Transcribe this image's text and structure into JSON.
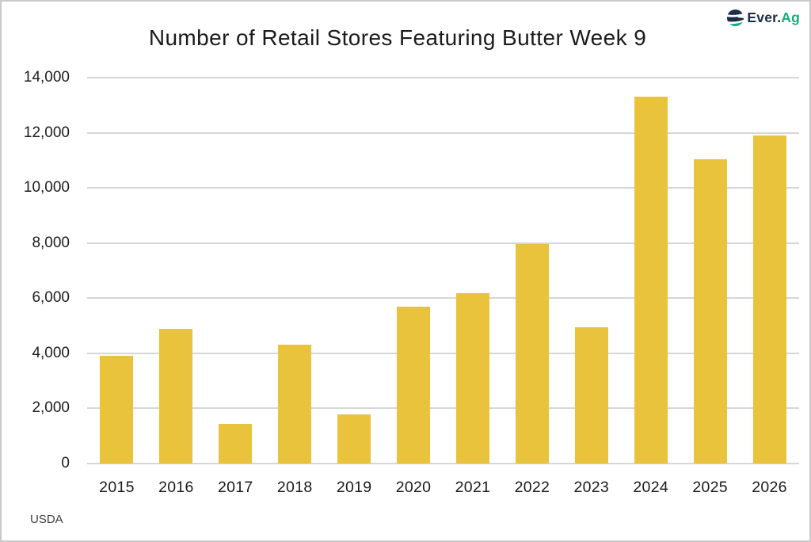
{
  "header": {
    "title": "Number of Retail Stores Featuring Butter Week 9",
    "logo": {
      "prefix": "Ever.",
      "suffix": "Ag",
      "navy": "#1C2C4A",
      "green": "#14AF78",
      "icon": "ever-ag-globe-icon"
    }
  },
  "source": "USDA",
  "chart_data": {
    "type": "bar",
    "title": "Number of Retail Stores Featuring Butter Week 9",
    "categories": [
      "2015",
      "2016",
      "2017",
      "2018",
      "2019",
      "2020",
      "2021",
      "2022",
      "2023",
      "2024",
      "2025",
      "2026"
    ],
    "values": [
      3900,
      4890,
      1450,
      4300,
      1780,
      5700,
      6170,
      7950,
      4950,
      13300,
      11050,
      11900
    ],
    "xlabel": "",
    "ylabel": "",
    "ylim": [
      0,
      14000
    ],
    "ytick_step": 2000,
    "ytick_labels": [
      "0",
      "2,000",
      "4,000",
      "6,000",
      "8,000",
      "10,000",
      "12,000",
      "14,000"
    ],
    "grid": true,
    "legend": "none",
    "bar_color": "#E9C33C",
    "gridline_color": "#D6D6D6",
    "source": "USDA"
  }
}
